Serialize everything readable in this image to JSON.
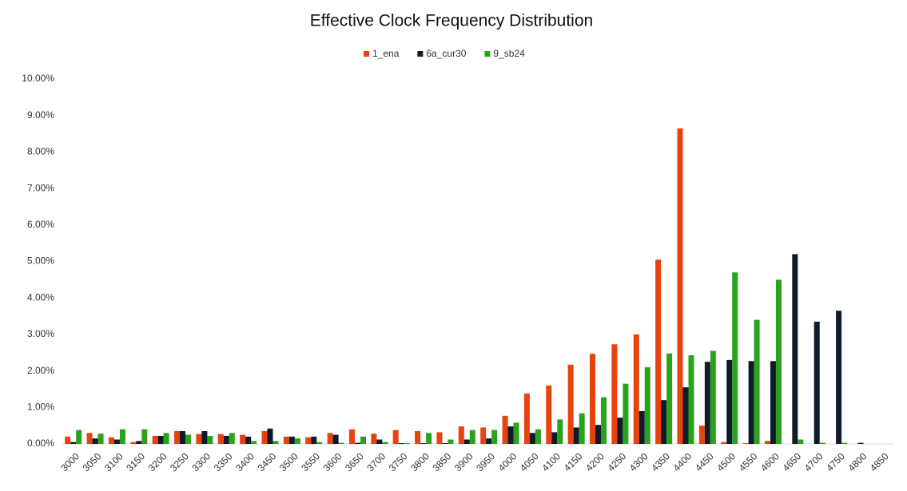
{
  "chart_data": {
    "type": "bar",
    "title": "Effective Clock Frequency Distribution",
    "categories": [
      "3000",
      "3050",
      "3100",
      "3150",
      "3200",
      "3250",
      "3300",
      "3350",
      "3400",
      "3450",
      "3500",
      "3550",
      "3600",
      "3650",
      "3700",
      "3750",
      "3800",
      "3850",
      "3900",
      "3950",
      "4000",
      "4050",
      "4100",
      "4150",
      "4200",
      "4250",
      "4300",
      "4350",
      "4400",
      "4450",
      "4500",
      "4550",
      "4600",
      "4650",
      "4700",
      "4750",
      "4800",
      "4850"
    ],
    "series": [
      {
        "name": "1_ena",
        "color": "#e8420e",
        "values": [
          0.2,
          0.3,
          0.18,
          0.05,
          0.22,
          0.35,
          0.27,
          0.27,
          0.25,
          0.35,
          0.2,
          0.18,
          0.3,
          0.4,
          0.28,
          0.38,
          0.35,
          0.32,
          0.48,
          0.45,
          0.77,
          1.38,
          1.6,
          2.17,
          2.47,
          2.73,
          3.0,
          5.05,
          8.65,
          0.5,
          0.05,
          0.02,
          0.08,
          0,
          0,
          0,
          0,
          0
        ]
      },
      {
        "name": "6a_cur30",
        "color": "#111a2b",
        "values": [
          0.05,
          0.15,
          0.12,
          0.08,
          0.22,
          0.35,
          0.35,
          0.22,
          0.2,
          0.42,
          0.2,
          0.2,
          0.25,
          0.03,
          0.12,
          0.02,
          0.02,
          0.02,
          0.12,
          0.15,
          0.48,
          0.3,
          0.32,
          0.45,
          0.52,
          0.72,
          0.9,
          1.2,
          1.55,
          2.25,
          2.3,
          2.27,
          2.27,
          5.2,
          3.35,
          3.65,
          0.03,
          0
        ]
      },
      {
        "name": "9_sb24",
        "color": "#2aa31c",
        "values": [
          0.38,
          0.28,
          0.4,
          0.4,
          0.3,
          0.25,
          0.22,
          0.3,
          0.08,
          0.08,
          0.15,
          0.05,
          0.03,
          0.2,
          0.05,
          0.02,
          0.3,
          0.12,
          0.38,
          0.38,
          0.58,
          0.4,
          0.67,
          0.84,
          1.28,
          1.65,
          2.1,
          2.48,
          2.43,
          2.55,
          4.7,
          3.4,
          4.5,
          0.12,
          0.03,
          0.03,
          0,
          0
        ]
      }
    ],
    "ylim": [
      0,
      10
    ],
    "yticks": [
      {
        "value": 0,
        "label": "0.00%"
      },
      {
        "value": 1,
        "label": "1.00%"
      },
      {
        "value": 2,
        "label": "2.00%"
      },
      {
        "value": 3,
        "label": "3.00%"
      },
      {
        "value": 4,
        "label": "4.00%"
      },
      {
        "value": 5,
        "label": "5.00%"
      },
      {
        "value": 6,
        "label": "6.00%"
      },
      {
        "value": 7,
        "label": "7.00%"
      },
      {
        "value": 8,
        "label": "8.00%"
      },
      {
        "value": 9,
        "label": "9.00%"
      },
      {
        "value": 10,
        "label": "10.00%"
      }
    ],
    "legend": "top"
  }
}
